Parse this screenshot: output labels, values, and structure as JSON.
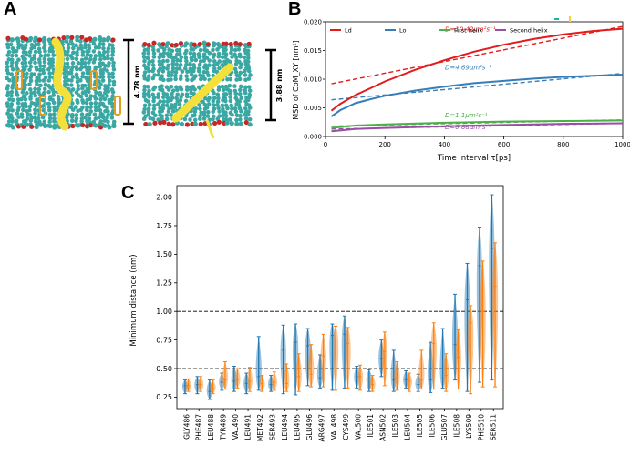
{
  "panels": {
    "a_letter": "A",
    "b_letter": "B",
    "c_letter": "C"
  },
  "panel_a": {
    "thickness_left": "4.78 nm",
    "thickness_right": "3.88 nm",
    "colors": {
      "lipid": "#3aa7a3",
      "oxygen": "#c62828",
      "helix": "#f4e03a",
      "cholesterol": "#e39b22"
    }
  },
  "chart_data": [
    {
      "type": "line",
      "ylabel": "MSD of CoM_XY [nm²]",
      "xlabel": "Time interval τ[ps]",
      "xlim": [
        0,
        1000
      ],
      "ylim": [
        0,
        0.02
      ],
      "x_ticks": [
        0,
        200,
        400,
        600,
        800,
        1000
      ],
      "y_ticks": [
        "0.000",
        "0.005",
        "0.010",
        "0.015",
        "0.020"
      ],
      "legend_position": "top",
      "series": [
        {
          "name": "Ld",
          "color": "#e41a1c",
          "x": [
            20,
            50,
            100,
            150,
            200,
            300,
            400,
            500,
            600,
            700,
            800,
            900,
            1000
          ],
          "y": [
            0.0045,
            0.0057,
            0.0072,
            0.0084,
            0.0096,
            0.0116,
            0.0133,
            0.0148,
            0.016,
            0.017,
            0.0178,
            0.0184,
            0.0188
          ],
          "fit_x": [
            20,
            1000
          ],
          "fit_y": [
            0.0092,
            0.0192
          ],
          "annotation": "D=10.42μm²s⁻¹"
        },
        {
          "name": "Lo",
          "color": "#377eb8",
          "x": [
            20,
            50,
            100,
            150,
            200,
            300,
            400,
            500,
            600,
            700,
            800,
            900,
            1000
          ],
          "y": [
            0.0035,
            0.0046,
            0.0058,
            0.0065,
            0.0071,
            0.008,
            0.0087,
            0.0093,
            0.0097,
            0.0101,
            0.0104,
            0.0106,
            0.0108
          ],
          "fit_x": [
            20,
            1000
          ],
          "fit_y": [
            0.0064,
            0.011
          ],
          "annotation": "D=4.69μm²s⁻¹"
        },
        {
          "name": "First helix",
          "color": "#4daf4a",
          "x": [
            20,
            100,
            200,
            400,
            600,
            800,
            1000
          ],
          "y": [
            0.0015,
            0.0019,
            0.0021,
            0.0024,
            0.0026,
            0.0027,
            0.0028
          ],
          "fit_x": [
            20,
            1000
          ],
          "fit_y": [
            0.0018,
            0.0029
          ],
          "annotation": "D=1.1μm²s⁻¹"
        },
        {
          "name": "Second helix",
          "color": "#984ea3",
          "x": [
            20,
            100,
            200,
            400,
            600,
            800,
            1000
          ],
          "y": [
            0.0009,
            0.0013,
            0.0015,
            0.0018,
            0.002,
            0.0022,
            0.0023
          ],
          "fit_x": [
            20,
            1000
          ],
          "fit_y": [
            0.0013,
            0.0023
          ],
          "annotation": "D=0.88μm²s⁻¹"
        }
      ]
    },
    {
      "type": "violin",
      "ylabel": "Minimum distance (nm)",
      "ylim": [
        0.15,
        2.1
      ],
      "y_ticks": [
        "0.25",
        "0.50",
        "0.75",
        "1.00",
        "1.25",
        "1.50",
        "1.75",
        "2.00"
      ],
      "reference_lines": [
        0.5,
        1.0
      ],
      "series": [
        {
          "name": "",
          "color": "#1f77b4",
          "values": [
            [
              0.28,
              0.35,
              0.4
            ],
            [
              0.28,
              0.36,
              0.43
            ],
            [
              0.23,
              0.3,
              0.4
            ],
            [
              0.31,
              0.38,
              0.46
            ],
            [
              0.3,
              0.39,
              0.52
            ],
            [
              0.28,
              0.37,
              0.46
            ],
            [
              0.31,
              0.43,
              0.78
            ],
            [
              0.3,
              0.36,
              0.44
            ],
            [
              0.28,
              0.66,
              0.88
            ],
            [
              0.27,
              0.73,
              0.89
            ],
            [
              0.35,
              0.7,
              0.85
            ],
            [
              0.33,
              0.42,
              0.62
            ],
            [
              0.31,
              0.79,
              0.89
            ],
            [
              0.33,
              0.8,
              0.96
            ],
            [
              0.33,
              0.43,
              0.52
            ],
            [
              0.3,
              0.41,
              0.49
            ],
            [
              0.43,
              0.59,
              0.75
            ],
            [
              0.3,
              0.4,
              0.66
            ],
            [
              0.33,
              0.4,
              0.48
            ],
            [
              0.3,
              0.36,
              0.45
            ],
            [
              0.29,
              0.4,
              0.73
            ],
            [
              0.33,
              0.41,
              0.85
            ],
            [
              0.4,
              0.71,
              1.15
            ],
            [
              0.3,
              1.1,
              1.42
            ],
            [
              0.38,
              1.4,
              1.73
            ],
            [
              0.4,
              1.55,
              2.02
            ]
          ]
        },
        {
          "name": "",
          "color": "#ff7f0e",
          "values": [
            [
              0.3,
              0.35,
              0.41
            ],
            [
              0.3,
              0.36,
              0.43
            ],
            [
              0.28,
              0.33,
              0.4
            ],
            [
              0.32,
              0.4,
              0.56
            ],
            [
              0.33,
              0.4,
              0.5
            ],
            [
              0.3,
              0.39,
              0.51
            ],
            [
              0.3,
              0.37,
              0.44
            ],
            [
              0.31,
              0.38,
              0.47
            ],
            [
              0.3,
              0.37,
              0.54
            ],
            [
              0.3,
              0.43,
              0.63
            ],
            [
              0.34,
              0.45,
              0.71
            ],
            [
              0.34,
              0.61,
              0.8
            ],
            [
              0.31,
              0.76,
              0.87
            ],
            [
              0.33,
              0.72,
              0.86
            ],
            [
              0.31,
              0.43,
              0.53
            ],
            [
              0.3,
              0.36,
              0.44
            ],
            [
              0.35,
              0.65,
              0.82
            ],
            [
              0.31,
              0.42,
              0.56
            ],
            [
              0.3,
              0.39,
              0.46
            ],
            [
              0.32,
              0.4,
              0.66
            ],
            [
              0.32,
              0.72,
              0.9
            ],
            [
              0.3,
              0.44,
              0.63
            ],
            [
              0.32,
              0.6,
              0.84
            ],
            [
              0.28,
              0.9,
              1.05
            ],
            [
              0.34,
              1.0,
              1.44
            ],
            [
              0.34,
              1.22,
              1.6
            ]
          ]
        }
      ],
      "categories": [
        "GLY486",
        "PHE487",
        "LEU488",
        "TYR489",
        "VAL490",
        "LEU491",
        "MET492",
        "SER493",
        "LEU494",
        "LEU495",
        "GLU496",
        "ARG497",
        "VAL498",
        "CYS499",
        "VAL500",
        "ILE501",
        "ASN502",
        "ILE503",
        "LEU504",
        "ILE505",
        "ILE506",
        "GLU507",
        "ILE508",
        "LYS509",
        "PHE510",
        "SER511"
      ]
    }
  ]
}
